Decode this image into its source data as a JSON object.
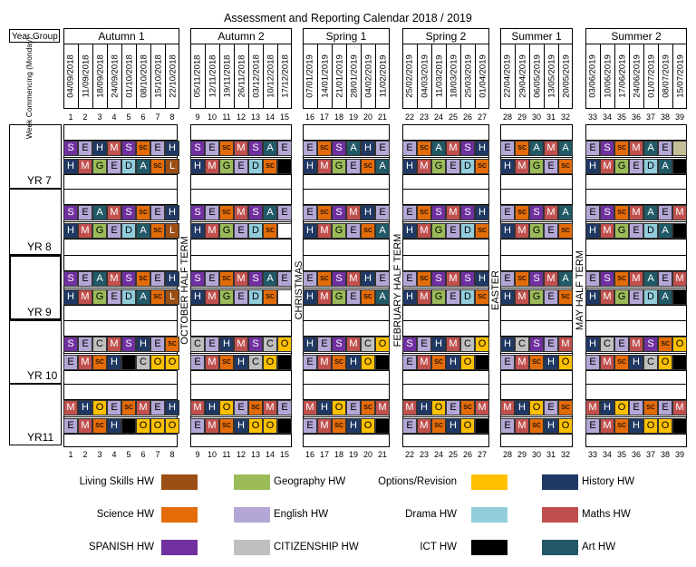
{
  "title": "Assessment and Reporting Calendar 2018 / 2019",
  "year_group_label": "Year Group",
  "week_label": "Week Commencing (Monday)",
  "colors": {
    "L": "#9b4f14",
    "S": "#7030a0",
    "E": "#b4a7d6",
    "H": "#1f3864",
    "M": "#c0504d",
    "G": "#9bbb59",
    "A": "#215967",
    "D": "#92cddc",
    "sc": "#e36c09",
    "C": "#bfbfbf",
    "O": "#ffc000",
    "I": "#000000",
    "W": "#ffffff",
    "T": "#c4bd97"
  },
  "terms": [
    {
      "name": "Autumn 1",
      "dates": [
        "04/09/2018",
        "11/09/2018",
        "18/09/2018",
        "24/09/2018",
        "01/10/2018",
        "08/10/2018",
        "15/10/2018",
        "22/10/2018"
      ],
      "weeks": [
        "1",
        "2",
        "3",
        "4",
        "5",
        "6",
        "7",
        "8"
      ]
    },
    {
      "name": "Autumn 2",
      "dates": [
        "05/11/2018",
        "12/11/2018",
        "19/11/2018",
        "26/11/2018",
        "03/12/2018",
        "10/12/2018",
        "17/12/2018"
      ],
      "weeks": [
        "9",
        "10",
        "11",
        "12",
        "13",
        "14",
        "15"
      ]
    },
    {
      "name": "Spring 1",
      "dates": [
        "07/01/2019",
        "14/01/2019",
        "21/01/2019",
        "28/01/2019",
        "04/02/2019",
        "11/02/2019"
      ],
      "weeks": [
        "16",
        "17",
        "18",
        "19",
        "20",
        "21"
      ]
    },
    {
      "name": "Spring 2",
      "dates": [
        "25/02/2019",
        "04/03/2019",
        "11/03/2019",
        "18/03/2019",
        "25/03/2019",
        "01/04/2019"
      ],
      "weeks": [
        "22",
        "23",
        "24",
        "25",
        "26",
        "27"
      ]
    },
    {
      "name": "Summer 1",
      "dates": [
        "22/04/2019",
        "29/04/2019",
        "06/05/2019",
        "13/05/2019",
        "20/05/2019"
      ],
      "weeks": [
        "28",
        "29",
        "30",
        "31",
        "32"
      ]
    },
    {
      "name": "Summer 2",
      "dates": [
        "03/06/2019",
        "10/06/2019",
        "17/06/2019",
        "24/06/2019",
        "01/07/2019",
        "08/07/2019",
        "15/07/2019"
      ],
      "weeks": [
        "33",
        "34",
        "35",
        "36",
        "37",
        "38",
        "39"
      ]
    }
  ],
  "breaks": [
    "OCTOBER HALF TERM",
    "CHRISTMAS",
    "FEBRUARY HALF TERM",
    "EASTER",
    "MAY HALF TERM"
  ],
  "years": [
    {
      "name": "YR 7",
      "rows": [
        [
          "S",
          "E",
          "H",
          "M",
          "S",
          "sc",
          "E",
          "H",
          "",
          "S",
          "E",
          "sc",
          "M",
          "S",
          "A",
          "E",
          "",
          "E",
          "sc",
          "S",
          "A",
          "H",
          "E",
          "",
          "E",
          "sc",
          "A",
          "M",
          "S",
          "H",
          "",
          "E",
          "sc",
          "A",
          "M",
          "A",
          "",
          "E",
          "S",
          "sc",
          "M",
          "A",
          "E",
          "T"
        ],
        [
          "H",
          "M",
          "G",
          "E",
          "D",
          "A",
          "sc",
          "L",
          "",
          "H",
          "M",
          "G",
          "E",
          "D",
          "sc",
          "I",
          "",
          "H",
          "M",
          "G",
          "E",
          "sc",
          "A",
          "",
          "H",
          "M",
          "G",
          "E",
          "D",
          "sc",
          "",
          "H",
          "M",
          "G",
          "E",
          "sc",
          "",
          "H",
          "M",
          "G",
          "E",
          "D",
          "A",
          "I"
        ]
      ]
    },
    {
      "name": "YR 8",
      "rows": [
        [
          "S",
          "E",
          "A",
          "M",
          "S",
          "sc",
          "E",
          "H",
          "",
          "S",
          "E",
          "sc",
          "M",
          "S",
          "A",
          "E",
          "",
          "E",
          "sc",
          "S",
          "M",
          "H",
          "E",
          "",
          "E",
          "sc",
          "S",
          "M",
          "S",
          "H",
          "",
          "E",
          "sc",
          "S",
          "M",
          "A",
          "",
          "E",
          "S",
          "sc",
          "M",
          "A",
          "E",
          "M"
        ],
        [
          "H",
          "M",
          "G",
          "E",
          "D",
          "A",
          "sc",
          "L",
          "",
          "H",
          "M",
          "G",
          "E",
          "D",
          "sc",
          "W",
          "",
          "H",
          "M",
          "G",
          "E",
          "sc",
          "A",
          "",
          "H",
          "M",
          "G",
          "E",
          "D",
          "sc",
          "",
          "H",
          "M",
          "G",
          "E",
          "sc",
          "",
          "H",
          "M",
          "G",
          "E",
          "D",
          "A",
          "I"
        ]
      ]
    },
    {
      "name": "YR 9",
      "rows": [
        [
          "S",
          "E",
          "A",
          "M",
          "S",
          "sc",
          "E",
          "H",
          "",
          "S",
          "E",
          "sc",
          "M",
          "S",
          "A",
          "E",
          "",
          "E",
          "sc",
          "S",
          "M",
          "H",
          "E",
          "",
          "E",
          "sc",
          "S",
          "M",
          "S",
          "H",
          "",
          "E",
          "sc",
          "S",
          "M",
          "A",
          "",
          "E",
          "S",
          "sc",
          "M",
          "A",
          "E",
          "M"
        ],
        [
          "H",
          "M",
          "G",
          "E",
          "D",
          "A",
          "sc",
          "L",
          "",
          "H",
          "M",
          "G",
          "E",
          "D",
          "sc",
          "W",
          "",
          "H",
          "M",
          "G",
          "E",
          "sc",
          "A",
          "",
          "H",
          "M",
          "G",
          "E",
          "D",
          "sc",
          "",
          "H",
          "M",
          "G",
          "E",
          "sc",
          "",
          "H",
          "M",
          "G",
          "E",
          "D",
          "A",
          "I"
        ]
      ]
    },
    {
      "name": "YR 10",
      "rows": [
        [
          "S",
          "E",
          "C",
          "M",
          "S",
          "H",
          "E",
          "sc",
          "",
          "C",
          "E",
          "H",
          "M",
          "S",
          "C",
          "O",
          "",
          "H",
          "E",
          "S",
          "M",
          "C",
          "O",
          "",
          "S",
          "E",
          "H",
          "M",
          "C",
          "O",
          "",
          "H",
          "C",
          "S",
          "E",
          "M",
          "",
          "H",
          "C",
          "E",
          "M",
          "S",
          "sc",
          "O"
        ],
        [
          "E",
          "M",
          "sc",
          "H",
          "I",
          "C",
          "O",
          "O",
          "",
          "E",
          "M",
          "sc",
          "H",
          "C",
          "O",
          "I",
          "",
          "E",
          "M",
          "sc",
          "H",
          "O",
          "I",
          "",
          "E",
          "M",
          "sc",
          "H",
          "O",
          "I",
          "",
          "E",
          "M",
          "sc",
          "H",
          "O",
          "",
          "E",
          "M",
          "sc",
          "H",
          "C",
          "O",
          "I"
        ]
      ]
    },
    {
      "name": "YR11",
      "rows": [
        [
          "M",
          "H",
          "O",
          "E",
          "sc",
          "M",
          "E",
          "H",
          "",
          "M",
          "H",
          "O",
          "E",
          "sc",
          "M",
          "E",
          "",
          "M",
          "H",
          "O",
          "E",
          "sc",
          "M",
          "",
          "M",
          "H",
          "O",
          "E",
          "sc",
          "M",
          "",
          "M",
          "H",
          "O",
          "E",
          "sc",
          "",
          "M",
          "H",
          "O",
          "E",
          "sc",
          "E",
          "M"
        ],
        [
          "E",
          "M",
          "sc",
          "H",
          "I",
          "O",
          "O",
          "O",
          "",
          "E",
          "M",
          "sc",
          "H",
          "O",
          "O",
          "I",
          "",
          "E",
          "M",
          "sc",
          "H",
          "O",
          "I",
          "",
          "E",
          "M",
          "sc",
          "H",
          "O",
          "I",
          "",
          "E",
          "M",
          "sc",
          "H",
          "O",
          "",
          "E",
          "M",
          "sc",
          "H",
          "O",
          "O",
          "I"
        ]
      ]
    }
  ],
  "legend": [
    {
      "label": "Living Skills HW",
      "code": "L"
    },
    {
      "label": "Geography  HW",
      "code": "G"
    },
    {
      "label": "Options/Revision",
      "code": "O"
    },
    {
      "label": "History    HW",
      "code": "H"
    },
    {
      "label": "Science  HW",
      "code": "sc"
    },
    {
      "label": "English    HW",
      "code": "E"
    },
    {
      "label": "Drama HW",
      "code": "D"
    },
    {
      "label": "Maths       HW",
      "code": "M"
    },
    {
      "label": "SPANISH     HW",
      "code": "S"
    },
    {
      "label": "CITIZENSHIP     HW",
      "code": "C"
    },
    {
      "label": "ICT      HW",
      "code": "I"
    },
    {
      "label": "Art  HW",
      "code": "A"
    }
  ]
}
